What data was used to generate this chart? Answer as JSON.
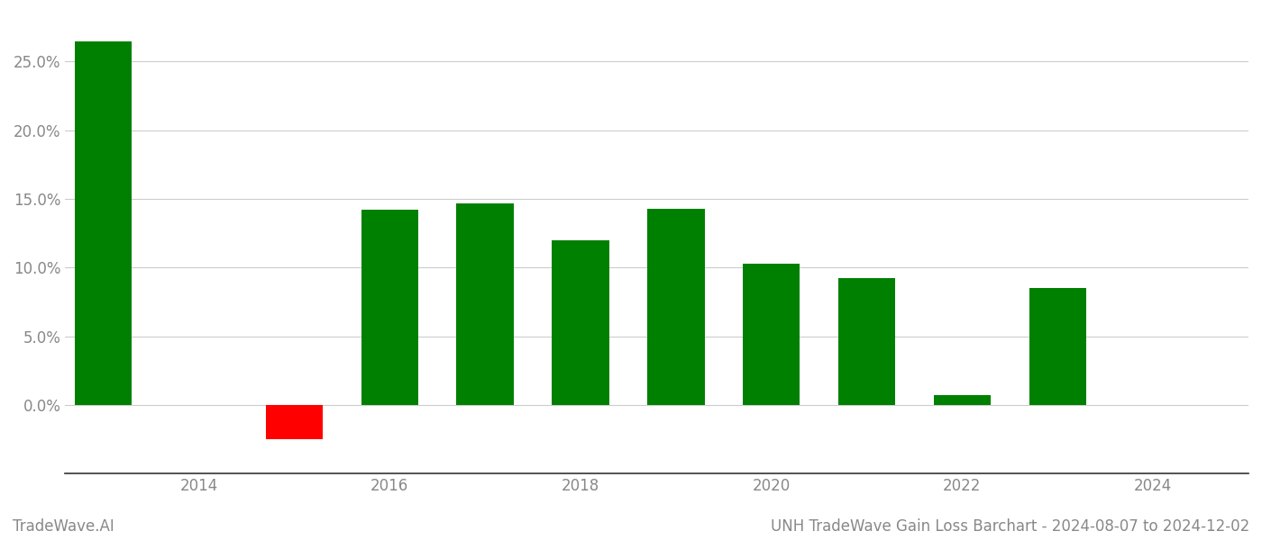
{
  "bars": [
    {
      "year": 2013,
      "value": 0.265,
      "color": "#008000"
    },
    {
      "year": 2015,
      "value": -0.025,
      "color": "#ff0000"
    },
    {
      "year": 2016,
      "value": 0.142,
      "color": "#008000"
    },
    {
      "year": 2017,
      "value": 0.147,
      "color": "#008000"
    },
    {
      "year": 2018,
      "value": 0.12,
      "color": "#008000"
    },
    {
      "year": 2019,
      "value": 0.143,
      "color": "#008000"
    },
    {
      "year": 2020,
      "value": 0.103,
      "color": "#008000"
    },
    {
      "year": 2021,
      "value": 0.092,
      "color": "#008000"
    },
    {
      "year": 2022,
      "value": 0.007,
      "color": "#008000"
    },
    {
      "year": 2023,
      "value": 0.085,
      "color": "#008000"
    }
  ],
  "title": "UNH TradeWave Gain Loss Barchart - 2024-08-07 to 2024-12-02",
  "watermark": "TradeWave.AI",
  "xlim_min": 2012.6,
  "xlim_max": 2025.0,
  "ylim_min": -0.05,
  "ylim_max": 0.285,
  "yticks": [
    0.0,
    0.05,
    0.1,
    0.15,
    0.2,
    0.25
  ],
  "xtick_step": 2,
  "xtick_start": 2014,
  "xtick_end": 2024,
  "background_color": "#ffffff",
  "grid_color": "#cccccc",
  "axis_label_color": "#888888",
  "bar_width": 0.6,
  "title_fontsize": 12,
  "watermark_fontsize": 12,
  "tick_fontsize": 12
}
